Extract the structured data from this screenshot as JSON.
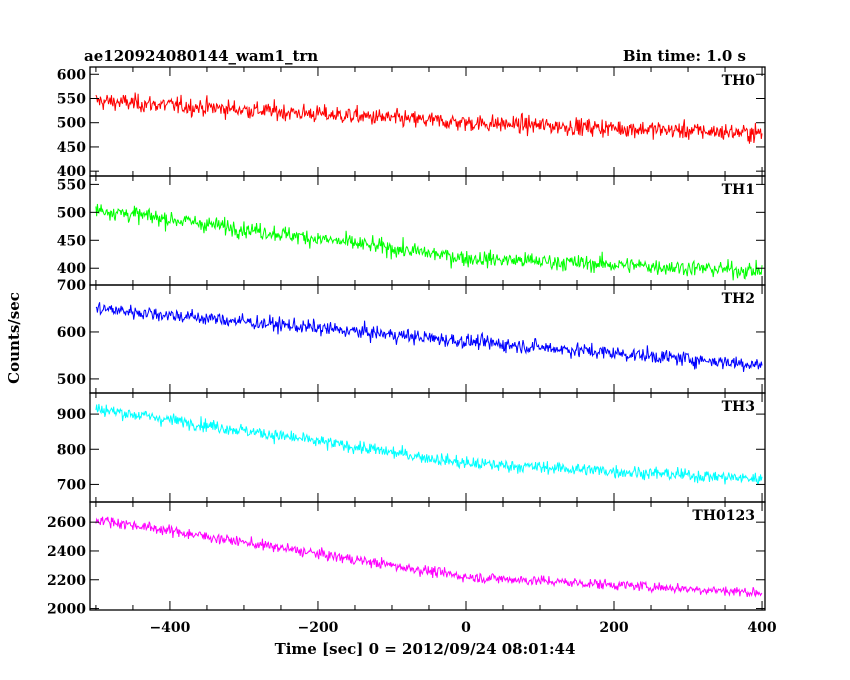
{
  "header": {
    "title": "ae120924080144_wam1_trn",
    "bin_time": "Bin time: 1.0 s"
  },
  "axes": {
    "ylabel": "Counts/sec",
    "xlabel": "Time [sec] 0 = 2012/09/24 08:01:44"
  },
  "chart_data": {
    "type": "line",
    "title": "ae120924080144_wam1_trn",
    "xlabel": "Time [sec] 0 = 2012/09/24 08:01:44",
    "ylabel": "Counts/sec",
    "bin_time_s": 1.0,
    "x_range": [
      -508,
      404
    ],
    "x_ticks": [
      -400,
      -200,
      0,
      200,
      400
    ],
    "grid": false,
    "panels": [
      {
        "name": "TH0",
        "color": "#ff0000",
        "ylim": [
          390,
          615
        ],
        "yticks": [
          400,
          450,
          500,
          550,
          600
        ],
        "trend": {
          "x": [
            -500,
            0,
            400
          ],
          "y": [
            545,
            500,
            478
          ]
        },
        "noise_amplitude": 35
      },
      {
        "name": "TH1",
        "color": "#00ff00",
        "ylim": [
          370,
          565
        ],
        "yticks": [
          400,
          450,
          500,
          550
        ],
        "trend": {
          "x": [
            -500,
            0,
            400
          ],
          "y": [
            505,
            418,
            395
          ]
        },
        "noise_amplitude": 28
      },
      {
        "name": "TH2",
        "color": "#0000ff",
        "ylim": [
          470,
          700
        ],
        "yticks": [
          500,
          600,
          700
        ],
        "trend": {
          "x": [
            -500,
            0,
            400
          ],
          "y": [
            650,
            580,
            530
          ]
        },
        "noise_amplitude": 30
      },
      {
        "name": "TH3",
        "color": "#00ffff",
        "ylim": [
          650,
          960
        ],
        "yticks": [
          700,
          800,
          900
        ],
        "trend": {
          "x": [
            -500,
            0,
            400
          ],
          "y": [
            915,
            760,
            715
          ]
        },
        "noise_amplitude": 35
      },
      {
        "name": "TH0123",
        "color": "#ff00ff",
        "ylim": [
          1990,
          2740
        ],
        "yticks": [
          2000,
          2200,
          2400,
          2600
        ],
        "trend": {
          "x": [
            -500,
            0,
            400
          ],
          "y": [
            2620,
            2220,
            2110
          ]
        },
        "noise_amplitude": 70
      }
    ]
  }
}
